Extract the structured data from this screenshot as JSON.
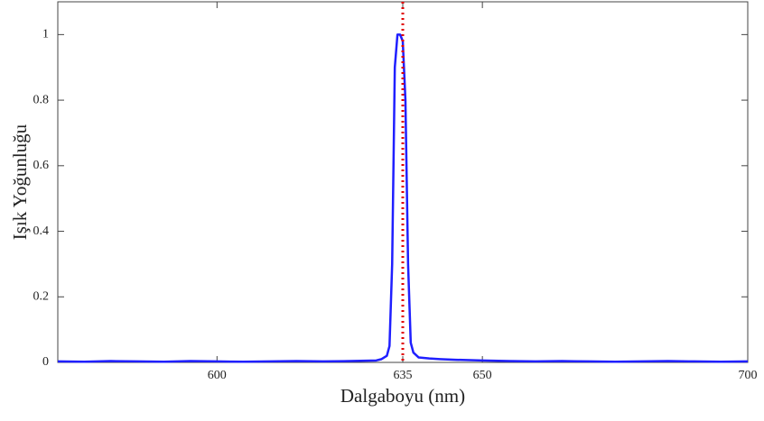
{
  "chart_data": {
    "type": "line",
    "x_label": "Dalgaboyu (nm)",
    "y_label": "Işık Yoğunluğu",
    "x": [
      570,
      575,
      580,
      585,
      590,
      595,
      600,
      605,
      610,
      615,
      620,
      625,
      630,
      631,
      632,
      632.5,
      633,
      633.5,
      634,
      634.5,
      635,
      635.5,
      636,
      636.5,
      637,
      638,
      640,
      642,
      645,
      650,
      655,
      660,
      665,
      670,
      675,
      680,
      685,
      690,
      695,
      700
    ],
    "series": [
      {
        "color": "#1f1fff",
        "values": [
          0.003,
          0.002,
          0.004,
          0.003,
          0.002,
          0.004,
          0.003,
          0.002,
          0.003,
          0.004,
          0.003,
          0.004,
          0.006,
          0.01,
          0.02,
          0.05,
          0.3,
          0.9,
          1.0,
          1.0,
          0.98,
          0.8,
          0.3,
          0.06,
          0.03,
          0.015,
          0.012,
          0.01,
          0.008,
          0.006,
          0.004,
          0.003,
          0.004,
          0.003,
          0.002,
          0.003,
          0.004,
          0.003,
          0.002,
          0.003
        ]
      }
    ],
    "reference_x": 635,
    "reference_color": "#e00000",
    "xlim": [
      570,
      700
    ],
    "xticks": [
      600,
      635,
      650,
      700
    ],
    "ylim": [
      0,
      1.1
    ],
    "yticks": [
      0,
      0.2,
      0.4,
      0.6,
      0.8,
      1
    ],
    "grid": false
  }
}
